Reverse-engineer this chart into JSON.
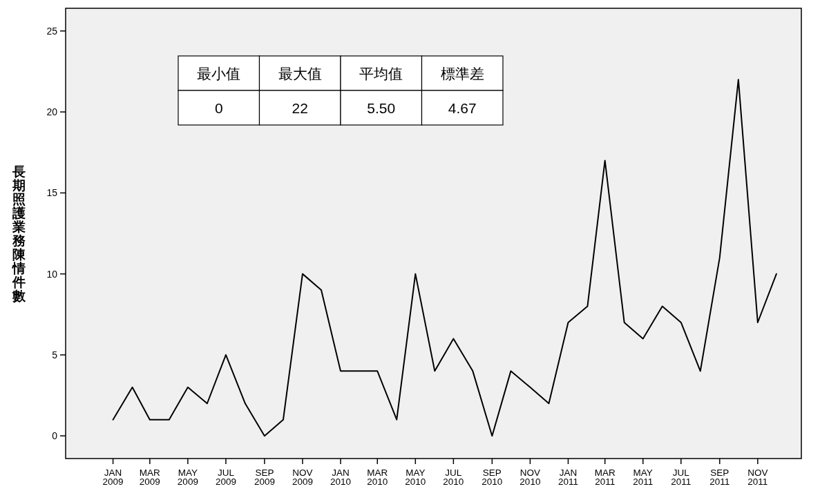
{
  "chart_data": {
    "type": "line",
    "ylabel": "長期照護業務陳情件數",
    "x": [
      "2009-01",
      "2009-02",
      "2009-03",
      "2009-04",
      "2009-05",
      "2009-06",
      "2009-07",
      "2009-08",
      "2009-09",
      "2009-10",
      "2009-11",
      "2009-12",
      "2010-01",
      "2010-02",
      "2010-03",
      "2010-04",
      "2010-05",
      "2010-06",
      "2010-07",
      "2010-08",
      "2010-09",
      "2010-10",
      "2010-11",
      "2010-12",
      "2011-01",
      "2011-02",
      "2011-03",
      "2011-04",
      "2011-05",
      "2011-06",
      "2011-07",
      "2011-08",
      "2011-09",
      "2011-10",
      "2011-11",
      "2011-12"
    ],
    "series": [
      {
        "color": "#000000",
        "values": [
          1,
          3,
          1,
          1,
          3,
          2,
          5,
          2,
          0,
          1,
          10,
          9,
          4,
          4,
          4,
          1,
          10,
          4,
          6,
          4,
          0,
          4,
          3,
          2,
          7,
          8,
          17,
          7,
          6,
          8,
          7,
          4,
          11,
          22,
          7,
          10
        ]
      }
    ],
    "xlim": [
      "2008-10-17",
      "2012-01-10"
    ],
    "xticks": [
      {
        "value": "2009-01",
        "label": "JAN 2009"
      },
      {
        "value": "2009-03",
        "label": "MAR 2009"
      },
      {
        "value": "2009-05",
        "label": "MAY 2009"
      },
      {
        "value": "2009-07",
        "label": "JUL 2009"
      },
      {
        "value": "2009-09",
        "label": "SEP 2009"
      },
      {
        "value": "2009-11",
        "label": "NOV 2009"
      },
      {
        "value": "2010-01",
        "label": "JAN 2010"
      },
      {
        "value": "2010-03",
        "label": "MAR 2010"
      },
      {
        "value": "2010-05",
        "label": "MAY 2010"
      },
      {
        "value": "2010-07",
        "label": "JUL 2010"
      },
      {
        "value": "2010-09",
        "label": "SEP 2010"
      },
      {
        "value": "2010-11",
        "label": "NOV 2010"
      },
      {
        "value": "2011-01",
        "label": "JAN 2011"
      },
      {
        "value": "2011-03",
        "label": "MAR 2011"
      },
      {
        "value": "2011-05",
        "label": "MAY 2011"
      },
      {
        "value": "2011-07",
        "label": "JUL 2011"
      },
      {
        "value": "2011-09",
        "label": "SEP 2011"
      },
      {
        "value": "2011-11",
        "label": "NOV 2011"
      }
    ],
    "ylim": [
      -1.4,
      26.4
    ],
    "yticks": [
      0,
      5,
      10,
      15,
      20,
      25
    ],
    "annotations": [
      "最小值",
      "最大值",
      "平均值",
      "標準差",
      "0",
      "22",
      "5.50",
      "4.67"
    ]
  }
}
